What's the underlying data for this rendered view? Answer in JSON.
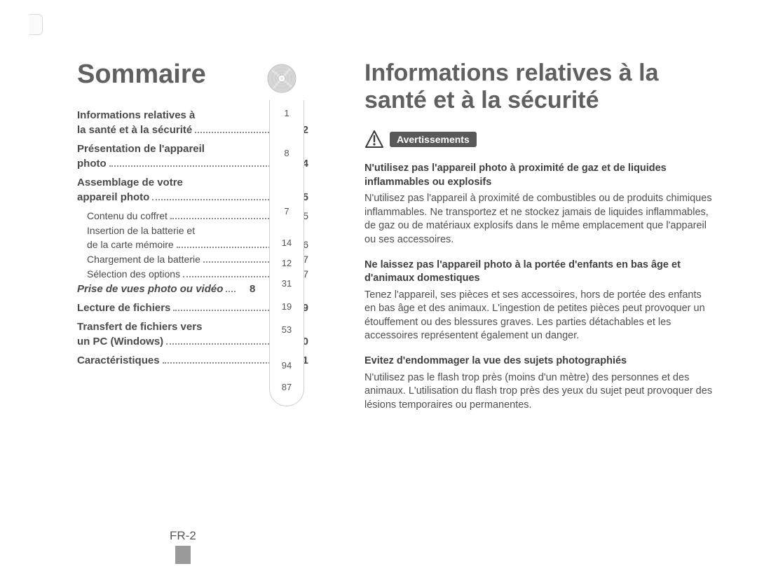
{
  "colors": {
    "text": "#4a4a4a",
    "heading": "#606060",
    "warn_bg": "#595959",
    "warn_fg": "#ffffff",
    "tab_bar": "#9a9a9a",
    "border": "#cfcfcf",
    "dots": "#8a8a8a"
  },
  "left": {
    "title": "Sommaire",
    "toc": [
      {
        "label_lines": [
          "Informations relatives à",
          "la santé et à la sécurité"
        ],
        "page": "2",
        "bold": true
      },
      {
        "label_lines": [
          "Présentation de l'appareil",
          "photo"
        ],
        "page": "4",
        "bold": true
      },
      {
        "label_lines": [
          "Assemblage de votre",
          "appareil photo"
        ],
        "page": "5",
        "bold": true
      },
      {
        "label": "Contenu du coffret",
        "page": "5",
        "sub": true
      },
      {
        "label_lines": [
          "Insertion de la batterie et",
          "de la carte mémoire"
        ],
        "page": "6",
        "sub": true
      },
      {
        "label": "Chargement de la batterie",
        "page": "7",
        "sub": true
      },
      {
        "label": "Sélection des options",
        "page": "7",
        "sub": true
      },
      {
        "label": "Prise de vues photo ou vidéo",
        "page": "8",
        "bold": true,
        "italic": true,
        "tight": true
      },
      {
        "label": "Lecture de fichiers",
        "page": "9",
        "bold": true
      },
      {
        "label_lines": [
          "Transfert de fichiers vers",
          "un PC (Windows)"
        ],
        "page": "10",
        "bold": true
      },
      {
        "label": "Caractéristiques",
        "page": "11",
        "bold": true
      }
    ]
  },
  "refs": {
    "items": [
      {
        "value": "1",
        "gap_after": 32
      },
      {
        "value": "8",
        "gap_after": 58
      },
      {
        "value": "7",
        "gap_after": 20
      },
      {
        "value": "14",
        "gap_after": 4
      },
      {
        "value": "12",
        "gap_after": 4
      },
      {
        "value": "31",
        "gap_after": 8
      },
      {
        "value": "19",
        "gap_after": 8
      },
      {
        "value": "53",
        "gap_after": 26
      },
      {
        "value": "94",
        "gap_after": 6
      },
      {
        "value": "87",
        "gap_after": 0
      }
    ]
  },
  "right": {
    "title": "Informations relatives à la santé et à la sécurité",
    "warn_label": "Avertissements",
    "sections": [
      {
        "heading": "N'utilisez pas l'appareil photo à proximité de gaz et de liquides inflammables ou explosifs",
        "body": "N'utilisez pas l'appareil à proximité de combustibles ou de produits chimiques inflammables. Ne transportez et ne stockez jamais de liquides inflammables, de gaz ou de matériaux explosifs dans le même emplacement que l'appareil ou ses accessoires."
      },
      {
        "heading": "Ne laissez pas l'appareil photo à la portée d'enfants en bas âge et d'animaux domestiques",
        "body": "Tenez l'appareil, ses pièces et ses accessoires, hors de portée des enfants en bas âge et des animaux. L'ingestion de petites pièces peut provoquer un étouffement ou des blessures graves. Les parties détachables et les accessoires représentent également un danger."
      },
      {
        "heading": "Evitez d'endommager la vue des sujets photographiés",
        "body": "N'utilisez pas le flash trop près (moins d'un mètre) des personnes et des animaux. L'utilisation du flash trop près des yeux du sujet peut provoquer des lésions temporaires ou permanentes."
      }
    ]
  },
  "page_number": "FR-2"
}
